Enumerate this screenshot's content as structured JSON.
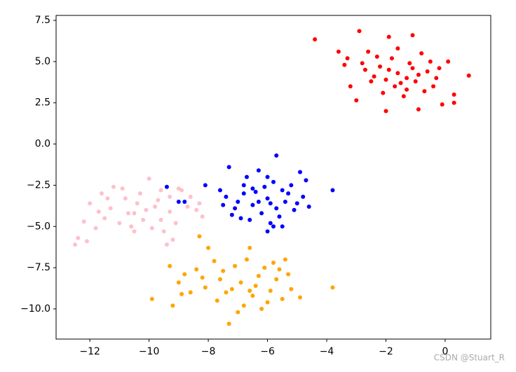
{
  "chart_data": {
    "type": "scatter",
    "watermark": "CSDN @Stuart_R",
    "xlim": [
      -13.14,
      1.54
    ],
    "ylim": [
      -11.83,
      7.8
    ],
    "xticks": [
      {
        "value": -12,
        "label": "−12"
      },
      {
        "value": -10,
        "label": "−10"
      },
      {
        "value": -8,
        "label": "−8"
      },
      {
        "value": -6,
        "label": "−6"
      },
      {
        "value": -4,
        "label": "−4"
      },
      {
        "value": -2,
        "label": "−2"
      },
      0
    ],
    "yticks": [
      {
        "value": -10,
        "label": "−10.0"
      },
      {
        "value": -7.5,
        "label": "−7.5"
      },
      {
        "value": -5,
        "label": "−5.0"
      },
      {
        "value": -2.5,
        "label": "−2.5"
      },
      {
        "value": 0,
        "label": "0.0"
      },
      {
        "value": 2.5,
        "label": "2.5"
      },
      {
        "value": 5,
        "label": "5.0"
      },
      {
        "value": 7.5,
        "label": "7.5"
      }
    ],
    "series": [
      {
        "color": "red",
        "x": [
          -4.4,
          -2.9,
          0.8,
          0.3,
          0.3,
          -1.1,
          -3.0,
          -2.0,
          -0.9,
          -3.6,
          -3.3,
          -3.2,
          -2.6,
          -2.4,
          -2.2,
          -2.1,
          -1.8,
          -1.6,
          -1.5,
          -1.4,
          -1.2,
          -1.0,
          -0.8,
          -0.6,
          -0.4,
          -0.2,
          0.1,
          -1.9,
          -2.7,
          -2.0,
          -1.3,
          -1.7,
          -0.7,
          -0.5,
          -2.3,
          -1.1,
          -2.8,
          -1.6,
          -0.3,
          -2.5,
          -1.9,
          -0.9,
          -0.1,
          -3.4,
          -1.3
        ],
        "y": [
          6.35,
          6.85,
          4.15,
          2.5,
          3.0,
          6.6,
          2.65,
          2.0,
          2.1,
          5.6,
          5.2,
          3.5,
          5.6,
          4.1,
          4.7,
          3.1,
          5.2,
          4.3,
          3.7,
          2.9,
          4.9,
          3.8,
          5.5,
          4.4,
          3.5,
          4.6,
          5.0,
          6.5,
          4.5,
          3.9,
          4.0,
          3.5,
          3.2,
          5.0,
          5.3,
          4.6,
          4.9,
          5.8,
          4.0,
          3.8,
          4.5,
          4.2,
          2.4,
          4.8,
          3.3
        ]
      },
      {
        "color": "blue",
        "x": [
          -9.4,
          -3.8,
          -5.7,
          -8.8,
          -9.0,
          -5.8,
          -6.0,
          -5.5,
          -7.3,
          -6.8,
          -6.5,
          -6.3,
          -6.0,
          -5.8,
          -5.5,
          -5.2,
          -4.9,
          -4.6,
          -4.8,
          -5.1,
          -5.4,
          -5.7,
          -6.0,
          -6.2,
          -6.5,
          -6.8,
          -7.1,
          -7.4,
          -7.6,
          -7.2,
          -6.9,
          -6.6,
          -6.4,
          -6.1,
          -5.9,
          -5.6,
          -5.3,
          -5.0,
          -4.7,
          -7.0,
          -6.7,
          -8.1,
          -6.3,
          -5.9,
          -7.5
        ],
        "y": [
          -2.6,
          -2.8,
          -0.7,
          -3.5,
          -3.5,
          -5.0,
          -5.3,
          -5.0,
          -1.4,
          -2.5,
          -2.7,
          -1.6,
          -2.0,
          -2.3,
          -2.8,
          -2.5,
          -1.7,
          -3.8,
          -3.2,
          -4.0,
          -3.5,
          -3.9,
          -3.3,
          -4.2,
          -3.7,
          -3.0,
          -3.9,
          -3.2,
          -2.8,
          -4.3,
          -4.5,
          -4.6,
          -2.9,
          -2.6,
          -3.6,
          -4.4,
          -3.0,
          -3.6,
          -2.2,
          -3.5,
          -2.0,
          -2.5,
          -3.5,
          -4.8,
          -3.7
        ]
      },
      {
        "color": "pink",
        "x": [
          -12.5,
          -12.2,
          -12.0,
          -11.5,
          -11.6,
          -11.2,
          -10.8,
          -10.5,
          -10.3,
          -10.0,
          -9.8,
          -9.6,
          -9.3,
          -9.0,
          -8.7,
          -8.4,
          -8.2,
          -9.5,
          -9.4,
          -10.6,
          -11.0,
          -11.8,
          -12.1,
          -10.9,
          -10.2,
          -9.9,
          -9.1,
          -9.7,
          -10.4,
          -11.3,
          -8.9,
          -8.6,
          -9.2,
          -10.7,
          -11.4,
          -9.6,
          -10.1,
          -8.3,
          -12.4,
          -10.5,
          -11.7,
          -9.3
        ],
        "y": [
          -6.1,
          -4.7,
          -3.6,
          -4.5,
          -3.0,
          -2.6,
          -3.3,
          -4.2,
          -3.0,
          -2.1,
          -3.8,
          -4.6,
          -3.2,
          -2.7,
          -3.8,
          -4.0,
          -4.4,
          -5.3,
          -6.1,
          -5.0,
          -4.8,
          -5.1,
          -5.9,
          -2.7,
          -4.6,
          -5.1,
          -4.8,
          -3.4,
          -3.6,
          -3.9,
          -2.8,
          -3.2,
          -5.8,
          -4.2,
          -3.3,
          -2.8,
          -4.0,
          -3.6,
          -5.7,
          -5.3,
          -4.1,
          -4.1
        ]
      },
      {
        "color": "orange",
        "x": [
          -3.8,
          -9.9,
          -9.2,
          -7.3,
          -8.3,
          -8.0,
          -6.6,
          -5.4,
          -8.8,
          -9.3,
          -8.4,
          -8.1,
          -7.8,
          -7.6,
          -7.4,
          -7.1,
          -6.9,
          -6.7,
          -6.5,
          -6.3,
          -6.1,
          -5.9,
          -5.7,
          -5.5,
          -5.3,
          -5.2,
          -4.9,
          -5.6,
          -6.8,
          -7.7,
          -8.6,
          -9.0,
          -8.9,
          -6.2,
          -7.0,
          -6.4,
          -7.5,
          -6.0,
          -8.2,
          -7.2,
          -5.8,
          -6.6
        ],
        "y": [
          -8.7,
          -9.4,
          -9.8,
          -10.9,
          -5.6,
          -6.3,
          -6.3,
          -7.0,
          -7.9,
          -7.4,
          -7.6,
          -8.7,
          -7.1,
          -8.2,
          -9.0,
          -7.4,
          -8.4,
          -7.0,
          -9.2,
          -8.0,
          -7.5,
          -8.9,
          -8.2,
          -9.4,
          -7.9,
          -8.8,
          -9.3,
          -7.6,
          -9.8,
          -9.5,
          -9.0,
          -8.4,
          -9.1,
          -10.0,
          -10.2,
          -8.6,
          -7.7,
          -9.6,
          -8.1,
          -8.8,
          -7.2,
          -8.9
        ]
      }
    ]
  }
}
